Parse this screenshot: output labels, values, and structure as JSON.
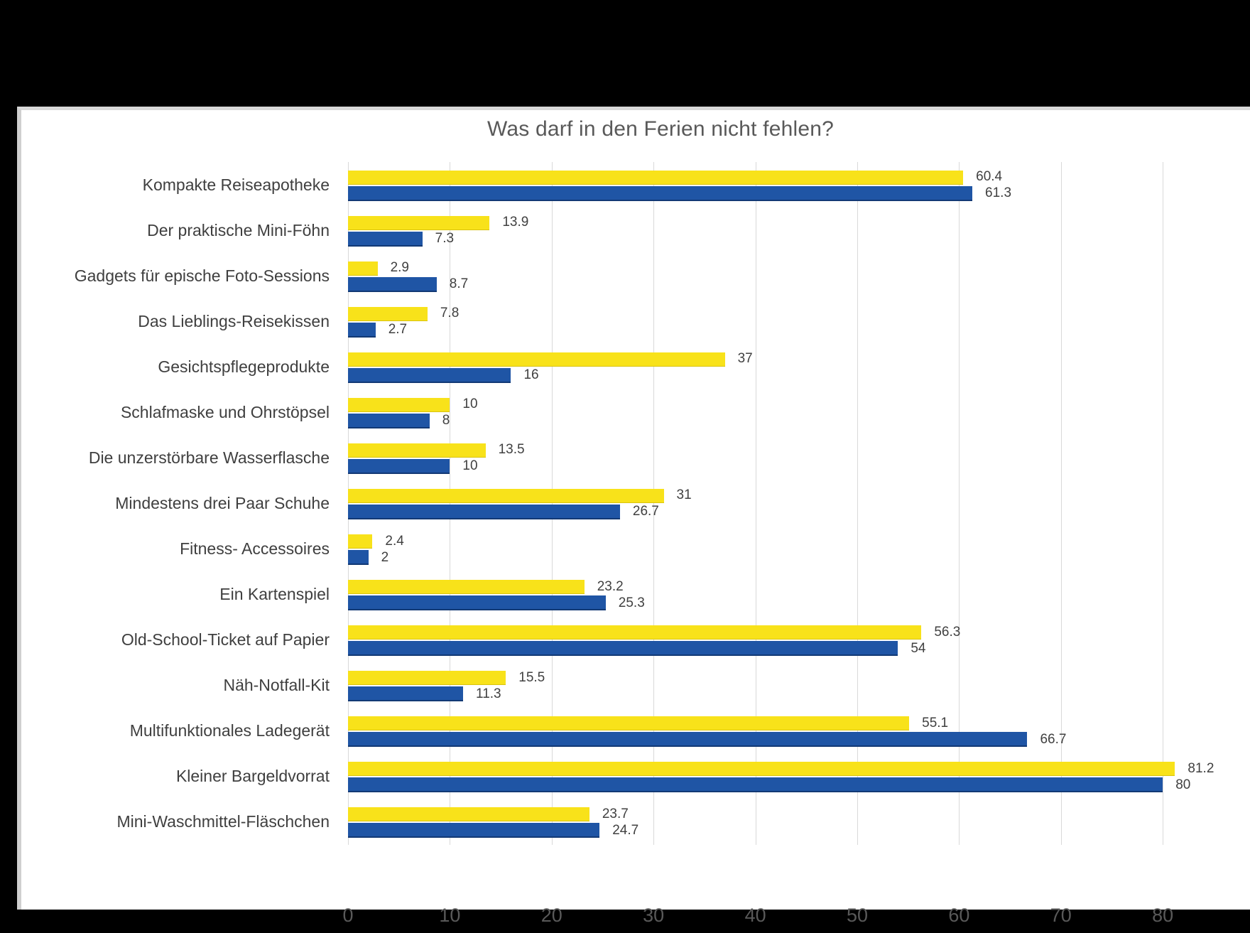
{
  "chart_data": {
    "type": "bar",
    "orientation": "horizontal",
    "title": "Was darf in den Ferien nicht fehlen?",
    "categories": [
      "Kompakte Reiseapotheke",
      "Der praktische Mini-Föhn",
      "Gadgets für epische Foto-Sessions",
      "Das Lieblings-Reisekissen",
      "Gesichtspflegeprodukte",
      "Schlafmaske und Ohrstöpsel",
      "Die unzerstörbare Wasserflasche",
      "Mindestens drei Paar Schuhe",
      "Fitness- Accessoires",
      "Ein Kartenspiel",
      "Old-School-Ticket auf Papier",
      "Näh-Notfall-Kit",
      "Multifunktionales Ladegerät",
      "Kleiner Bargeldvorrat",
      "Mini-Waschmittel-Fläschchen"
    ],
    "series": [
      {
        "name": "yellow-series",
        "color": "#F8E21A",
        "values": [
          60.4,
          13.9,
          2.9,
          7.8,
          37,
          10,
          13.5,
          31,
          2.4,
          23.2,
          56.3,
          15.5,
          55.1,
          81.2,
          23.7
        ],
        "labels": [
          "60.4",
          "13.9",
          "2.9",
          "7.8",
          "37",
          "10",
          "13.5",
          "31",
          "2.4",
          "23.2",
          "56.3",
          "15.5",
          "55.1",
          "81.2",
          "23.7"
        ]
      },
      {
        "name": "blue-series",
        "color": "#1F55A5",
        "values": [
          61.3,
          7.3,
          8.7,
          2.7,
          16,
          8,
          10,
          26.7,
          2,
          25.3,
          54,
          11.3,
          66.7,
          80,
          24.7
        ],
        "labels": [
          "61.3",
          "7.3",
          "8.7",
          "2.7",
          "16",
          "8",
          "10",
          "26.7",
          "2",
          "25.3",
          "54",
          "11.3",
          "66.7",
          "80",
          "24.7"
        ]
      }
    ],
    "x_axis": {
      "min": 0,
      "max": 80,
      "tick_interval": 10,
      "ticks": [
        "0",
        "10",
        "20",
        "30",
        "40",
        "50",
        "60",
        "70",
        "80"
      ]
    },
    "grid": "vertical",
    "legend": "none"
  },
  "colors": {
    "background_frame": "#000000",
    "page_background": "#FFFFFF",
    "gridline": "#D9D9D9",
    "title_text": "#595959",
    "category_text": "#3F3F3F",
    "value_text": "#404040",
    "tick_text": "#595959"
  }
}
